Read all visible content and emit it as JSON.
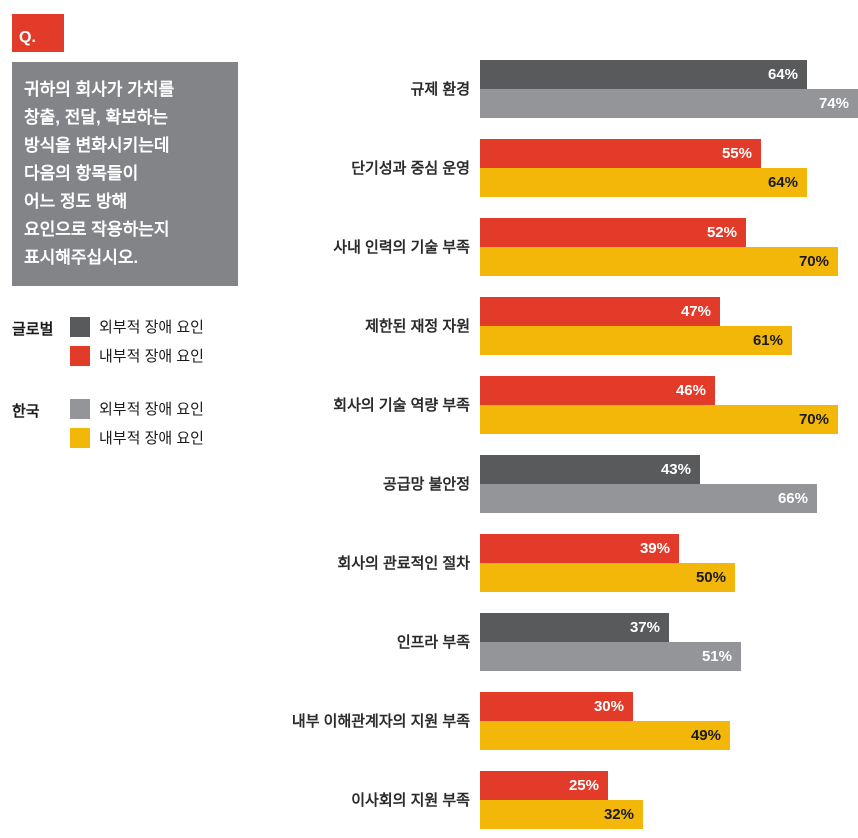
{
  "question": {
    "badge": "Q.",
    "lines": [
      "귀하의 회사가 가치를",
      "창출, 전달, 확보하는",
      "방식을 변화시키는데",
      "다음의 항목들이",
      "어느 정도 방해",
      "요인으로 작용하는지",
      "표시해주십시오."
    ]
  },
  "legend": {
    "groups": [
      {
        "name": "글로벌",
        "items": [
          {
            "label": "외부적 장애 요인",
            "color": "#595a5c"
          },
          {
            "label": "내부적 장애 요인",
            "color": "#e23b2a"
          }
        ]
      },
      {
        "name": "한국",
        "items": [
          {
            "label": "외부적 장애 요인",
            "color": "#939598"
          },
          {
            "label": "내부적 장애 요인",
            "color": "#f3b70a"
          }
        ]
      }
    ]
  },
  "chart_data": {
    "type": "bar",
    "orientation": "horizontal",
    "unit": "%",
    "xlim": [
      0,
      74
    ],
    "grid": false,
    "legend_position": "left",
    "title": "",
    "xlabel": "",
    "ylabel": "",
    "categories": [
      "규제 환경",
      "단기성과 중심 운영",
      "사내 인력의 기술 부족",
      "제한된 재정 자원",
      "회사의 기술 역량 부족",
      "공급망 불안정",
      "회사의 관료적인 절차",
      "인프라 부족",
      "내부 이해관계자의 지원 부족",
      "이사회의 지원 부족"
    ],
    "series": [
      {
        "name": "글로벌",
        "values": [
          64,
          55,
          52,
          47,
          46,
          43,
          39,
          37,
          30,
          25
        ]
      },
      {
        "name": "한국",
        "values": [
          74,
          64,
          70,
          61,
          70,
          66,
          50,
          51,
          49,
          32
        ]
      }
    ],
    "barrier_types": [
      "external",
      "internal",
      "internal",
      "internal",
      "internal",
      "external",
      "internal",
      "external",
      "internal",
      "internal"
    ],
    "colors": {
      "global_external": "#595a5c",
      "global_internal": "#e23b2a",
      "korea_external": "#939598",
      "korea_internal": "#f3b70a"
    },
    "value_label_colors": {
      "korea_internal": "#1a1a1a",
      "default": "#ffffff"
    }
  }
}
